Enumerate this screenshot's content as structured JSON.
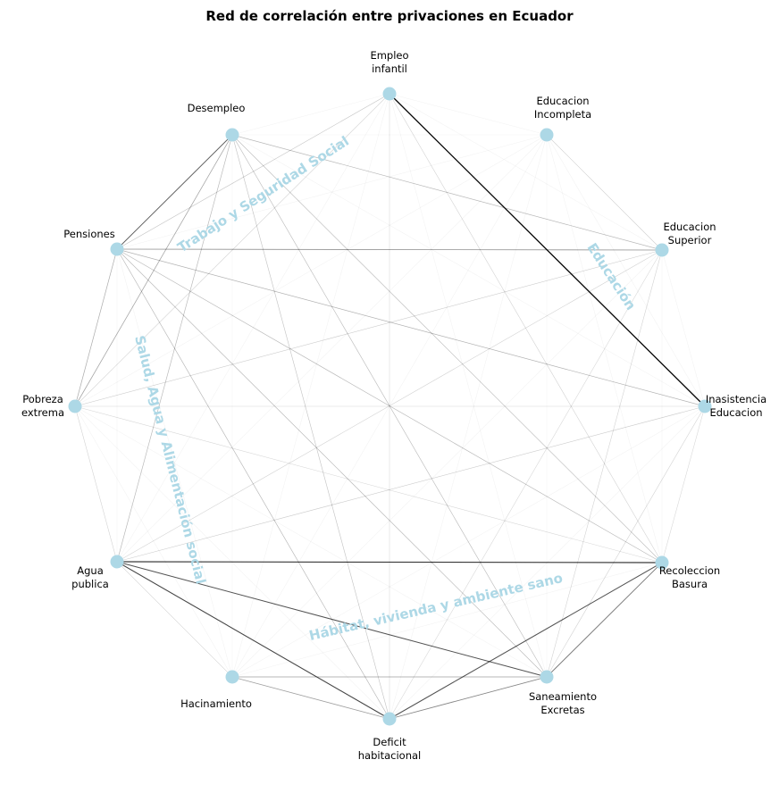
{
  "title": "Red de correlación entre privaciones en Ecuador",
  "colors": {
    "node": "#add8e6",
    "group_label": "#add8e6",
    "edge": "#000000"
  },
  "groups": [
    {
      "id": "trabajo",
      "label": "Trabajo y Seguridad Social"
    },
    {
      "id": "educacion",
      "label": "Educación"
    },
    {
      "id": "salud",
      "label": "Salud, Agua y Alimentación social"
    },
    {
      "id": "habitat",
      "label": "Hábitat, vivienda y ambiente sano"
    }
  ],
  "nodes": [
    {
      "id": "empleo",
      "lines": [
        "Empleo",
        "infantil"
      ]
    },
    {
      "id": "edu_incompleta",
      "lines": [
        "Educacion",
        "Incompleta"
      ]
    },
    {
      "id": "edu_superior",
      "lines": [
        "Educacion",
        "Superior"
      ]
    },
    {
      "id": "inasistencia",
      "lines": [
        "Inasistencia",
        "Educacion"
      ]
    },
    {
      "id": "recoleccion",
      "lines": [
        "Recoleccion",
        "Basura"
      ]
    },
    {
      "id": "saneamiento",
      "lines": [
        "Saneamiento",
        "Excretas"
      ]
    },
    {
      "id": "deficit",
      "lines": [
        "Deficit",
        "habitacional"
      ]
    },
    {
      "id": "hacinamiento",
      "lines": [
        "Hacinamiento"
      ]
    },
    {
      "id": "agua",
      "lines": [
        "Agua",
        "publica"
      ]
    },
    {
      "id": "pobreza",
      "lines": [
        "Pobreza",
        "extrema"
      ]
    },
    {
      "id": "pensiones",
      "lines": [
        "Pensiones"
      ]
    },
    {
      "id": "desempleo",
      "lines": [
        "Desempleo"
      ]
    }
  ],
  "edges": [
    {
      "source": "empleo",
      "target": "inasistencia",
      "weight": 0.9
    },
    {
      "source": "agua",
      "target": "recoleccion",
      "weight": 0.7
    },
    {
      "source": "agua",
      "target": "deficit",
      "weight": 0.65
    },
    {
      "source": "agua",
      "target": "saneamiento",
      "weight": 0.6
    },
    {
      "source": "deficit",
      "target": "recoleccion",
      "weight": 0.6
    },
    {
      "source": "saneamiento",
      "target": "recoleccion",
      "weight": 0.45
    },
    {
      "source": "pensiones",
      "target": "desempleo",
      "weight": 0.5
    },
    {
      "source": "pensiones",
      "target": "edu_superior",
      "weight": 0.35
    },
    {
      "source": "deficit",
      "target": "saneamiento",
      "weight": 0.4
    },
    {
      "source": "hacinamiento",
      "target": "saneamiento",
      "weight": 0.3
    },
    {
      "source": "hacinamiento",
      "target": "deficit",
      "weight": 0.3
    },
    {
      "source": "pobreza",
      "target": "desempleo",
      "weight": 0.28
    },
    {
      "source": "pobreza",
      "target": "pensiones",
      "weight": 0.25
    },
    {
      "source": "pensiones",
      "target": "inasistencia",
      "weight": 0.22
    },
    {
      "source": "pensiones",
      "target": "recoleccion",
      "weight": 0.2
    },
    {
      "source": "pensiones",
      "target": "saneamiento",
      "weight": 0.2
    },
    {
      "source": "pensiones",
      "target": "deficit",
      "weight": 0.2
    },
    {
      "source": "desempleo",
      "target": "edu_superior",
      "weight": 0.2
    },
    {
      "source": "desempleo",
      "target": "agua",
      "weight": 0.2
    },
    {
      "source": "desempleo",
      "target": "recoleccion",
      "weight": 0.18
    },
    {
      "source": "desempleo",
      "target": "saneamiento",
      "weight": 0.18
    },
    {
      "source": "desempleo",
      "target": "deficit",
      "weight": 0.15
    },
    {
      "source": "pensiones",
      "target": "empleo",
      "weight": 0.15
    },
    {
      "source": "pobreza",
      "target": "edu_superior",
      "weight": 0.12
    },
    {
      "source": "pobreza",
      "target": "empleo",
      "weight": 0.1
    },
    {
      "source": "agua",
      "target": "inasistencia",
      "weight": 0.12
    },
    {
      "source": "agua",
      "target": "edu_superior",
      "weight": 0.1
    },
    {
      "source": "edu_incompleta",
      "target": "edu_superior",
      "weight": 0.12
    },
    {
      "source": "empleo",
      "target": "recoleccion",
      "weight": 0.1
    },
    {
      "source": "empleo",
      "target": "deficit",
      "weight": 0.08
    },
    {
      "source": "pobreza",
      "target": "inasistencia",
      "weight": 0.08
    },
    {
      "source": "pobreza",
      "target": "agua",
      "weight": 0.1
    },
    {
      "source": "pobreza",
      "target": "recoleccion",
      "weight": 0.08
    },
    {
      "source": "agua",
      "target": "hacinamiento",
      "weight": 0.1
    },
    {
      "source": "edu_superior",
      "target": "saneamiento",
      "weight": 0.1
    },
    {
      "source": "inasistencia",
      "target": "saneamiento",
      "weight": 0.1
    },
    {
      "source": "inasistencia",
      "target": "recoleccion",
      "weight": 0.08
    },
    {
      "source": "edu_superior",
      "target": "deficit",
      "weight": 0.08
    },
    {
      "source": "desempleo",
      "target": "pensiones",
      "weight": 0.1
    }
  ]
}
